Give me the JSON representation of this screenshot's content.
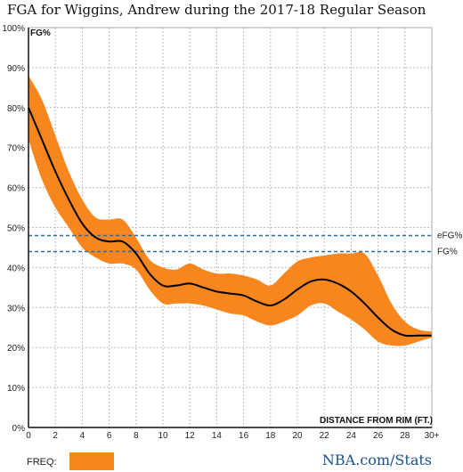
{
  "chart_data": {
    "type": "line",
    "title": "FGA for Wiggins, Andrew during the 2017-18 Regular Season",
    "ylabel": "FG%",
    "xlabel": "DISTANCE FROM RIM (FT.)",
    "xlim": [
      0,
      30
    ],
    "ylim": [
      0,
      100
    ],
    "grid": true,
    "x_ticks": [
      "0",
      "2",
      "4",
      "6",
      "8",
      "10",
      "12",
      "14",
      "16",
      "18",
      "20",
      "22",
      "24",
      "26",
      "28",
      "30+"
    ],
    "y_ticks": [
      "0%",
      "10%",
      "20%",
      "30%",
      "40%",
      "50%",
      "60%",
      "70%",
      "80%",
      "90%",
      "100%"
    ],
    "series": [
      {
        "name": "",
        "color": "#000000",
        "x": [
          0,
          1,
          2,
          3,
          4,
          5,
          6,
          7,
          8,
          9,
          10,
          11,
          12,
          13,
          14,
          15,
          16,
          17,
          18,
          19,
          20,
          21,
          22,
          23,
          24,
          25,
          26,
          27,
          28,
          29,
          30
        ],
        "y": [
          80,
          72,
          64,
          57,
          51,
          47.5,
          46.5,
          46.5,
          43.5,
          38.5,
          35.5,
          35.5,
          36,
          35,
          34,
          33.5,
          33,
          31.5,
          30.5,
          32,
          34.5,
          36.5,
          37,
          36,
          34,
          31,
          27.5,
          24.5,
          23,
          23,
          23
        ]
      }
    ],
    "band": {
      "label": "FREQ:",
      "color": "#f7861f",
      "upper": [
        88,
        82,
        73,
        64,
        57,
        52.5,
        52,
        52,
        47.5,
        42,
        40,
        39.5,
        41,
        39.5,
        38.5,
        38.5,
        38,
        37,
        35.5,
        38.5,
        41.5,
        42.5,
        43,
        43.5,
        43.5,
        43.5,
        38,
        31,
        26.5,
        24.5,
        24
      ],
      "lower": [
        72,
        62,
        55,
        50,
        45,
        42.5,
        41,
        41,
        39.5,
        34.5,
        31,
        31,
        31,
        30.5,
        29.5,
        28.5,
        28,
        26.5,
        25.5,
        26.5,
        28,
        30.5,
        31,
        29,
        27,
        24.5,
        21.5,
        20.5,
        20.5,
        21.5,
        22.5
      ]
    },
    "reference_lines": [
      {
        "label": "eFG%",
        "value": 48,
        "color": "#2e6da4"
      },
      {
        "label": "FG%",
        "value": 44,
        "color": "#2e6da4"
      }
    ],
    "source": "NBA.com/Stats"
  }
}
